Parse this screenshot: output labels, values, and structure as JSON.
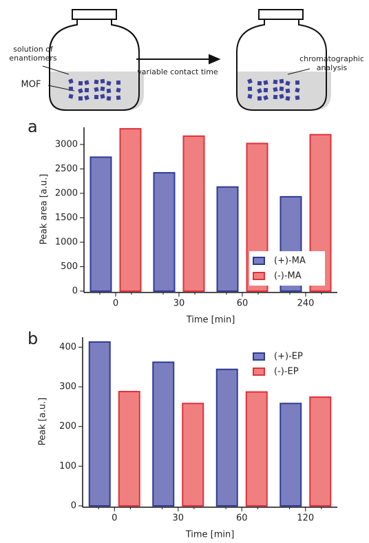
{
  "diagram": {
    "solution_label": "solution of\nenantiomers",
    "mof_label": "MOF",
    "arrow_label": "variable contact time",
    "analysis_label": "chromatographic\nanalysis"
  },
  "chart_data": [
    {
      "type": "bar",
      "label": "a",
      "xlabel": "Time [min]",
      "ylabel": "Peak area [a.u.]",
      "categories": [
        "0",
        "30",
        "60",
        "240"
      ],
      "series": [
        {
          "name": "(+)-MA",
          "color": "#7b7fc0",
          "edgecolor": "#2e3a94",
          "values": [
            2740,
            2420,
            2130,
            1930
          ]
        },
        {
          "name": "(-)-MA",
          "color": "#f08080",
          "edgecolor": "#e0303a",
          "values": [
            3320,
            3170,
            3020,
            3200
          ]
        }
      ],
      "ylim": [
        0,
        3350
      ],
      "yticks": [
        0,
        500,
        1000,
        1500,
        2000,
        2500,
        3000
      ],
      "legend": "lower right"
    },
    {
      "type": "bar",
      "label": "b",
      "xlabel": "Time [min]",
      "ylabel": "Peak [a.u.]",
      "categories": [
        "0",
        "30",
        "60",
        "120"
      ],
      "series": [
        {
          "name": "(+)-EP",
          "color": "#7b7fc0",
          "edgecolor": "#2e3a94",
          "values": [
            413,
            362,
            344,
            258
          ]
        },
        {
          "name": "(-)-EP",
          "color": "#f08080",
          "edgecolor": "#e0303a",
          "values": [
            288,
            258,
            287,
            274
          ]
        }
      ],
      "ylim": [
        0,
        425
      ],
      "yticks": [
        0,
        100,
        200,
        300,
        400
      ],
      "legend": "upper right"
    }
  ]
}
